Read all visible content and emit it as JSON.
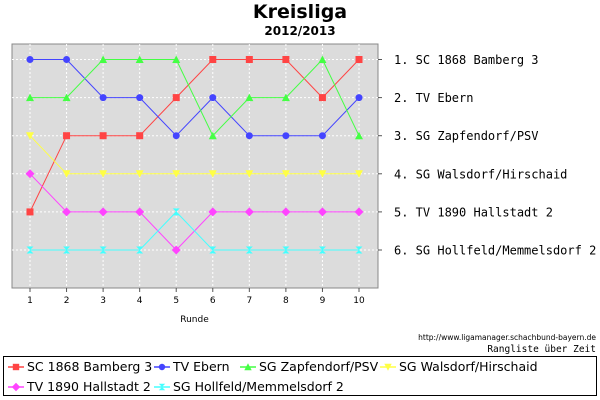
{
  "chart_data": {
    "type": "line",
    "title": "Kreisliga",
    "subtitle": "2012/2013",
    "xlabel": "Runde",
    "x": [
      1,
      2,
      3,
      4,
      5,
      6,
      7,
      8,
      9,
      10
    ],
    "ylim": [
      1,
      6
    ],
    "y_inverted": true,
    "y_tick_labels": [
      "1. SC 1868 Bamberg 3",
      "2. TV Ebern",
      "3. SG Zapfendorf/PSV",
      "4. SG Walsdorf/Hirschaid",
      "5. TV 1890 Hallstadt 2",
      "6. SG Hollfeld/Memmelsdorf 2"
    ],
    "grid": true,
    "legend_position": "bottom",
    "series": [
      {
        "name": "SC 1868 Bamberg 3",
        "color": "#ff4444",
        "marker": "square",
        "values": [
          5,
          3,
          3,
          3,
          2,
          1,
          1,
          1,
          2,
          1
        ]
      },
      {
        "name": "TV Ebern",
        "color": "#4444ff",
        "marker": "circle",
        "values": [
          1,
          1,
          2,
          2,
          3,
          2,
          3,
          3,
          3,
          2
        ]
      },
      {
        "name": "SG Zapfendorf/PSV",
        "color": "#44ff44",
        "marker": "triangle-up",
        "values": [
          2,
          2,
          1,
          1,
          1,
          3,
          2,
          2,
          1,
          3
        ]
      },
      {
        "name": "SG Walsdorf/Hirschaid",
        "color": "#ffff44",
        "marker": "triangle-down",
        "values": [
          3,
          4,
          4,
          4,
          4,
          4,
          4,
          4,
          4,
          4
        ]
      },
      {
        "name": "TV 1890 Hallstadt 2",
        "color": "#ff44ff",
        "marker": "diamond",
        "values": [
          4,
          5,
          5,
          5,
          6,
          5,
          5,
          5,
          5,
          5
        ]
      },
      {
        "name": "SG Hollfeld/Memmelsdorf 2",
        "color": "#44ffff",
        "marker": "hourglass",
        "values": [
          6,
          6,
          6,
          6,
          5,
          6,
          6,
          6,
          6,
          6
        ]
      }
    ]
  },
  "footer": {
    "source_url": "http://www.ligamanager.schachbund-bayern.de",
    "caption": "Rangliste über Zeit"
  }
}
